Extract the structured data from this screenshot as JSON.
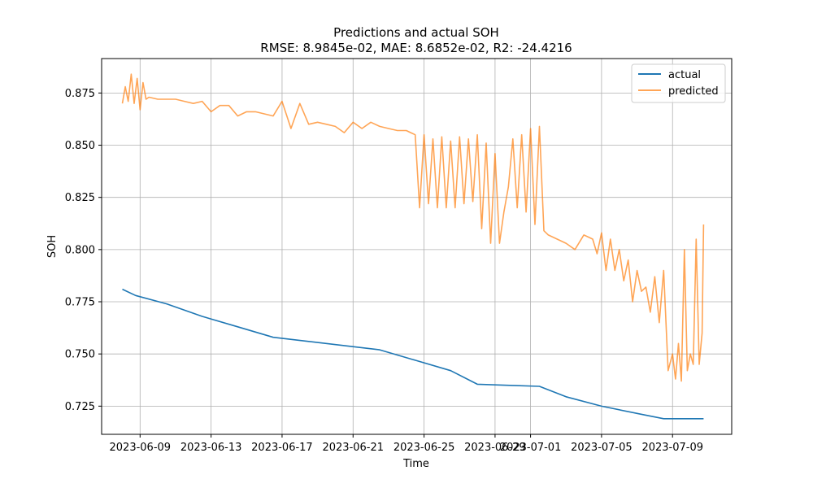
{
  "chart_data": {
    "type": "line",
    "title": "Predictions and actual SOH",
    "subtitle": "RMSE: 8.9845e-02, MAE: 8.6852e-02, R2: -24.4216",
    "xlabel": "Time",
    "ylabel": "SOH",
    "xlim": [
      "2023-06-06T20:00",
      "2023-07-12T08:00"
    ],
    "ylim": [
      0.7115,
      0.8915
    ],
    "grid": true,
    "legend_position": "top-right",
    "x_ticks": [
      "2023-06-09",
      "2023-06-13",
      "2023-06-17",
      "2023-06-21",
      "2023-06-25",
      "2023-06-29",
      "2023-07-01",
      "2023-07-05",
      "2023-07-09"
    ],
    "y_ticks": [
      "0.725",
      "0.750",
      "0.775",
      "0.800",
      "0.825",
      "0.850",
      "0.875"
    ],
    "series": [
      {
        "name": "actual",
        "color": "#1f77b4",
        "x": [
          "2023-06-08",
          "2023-06-08T18:00",
          "2023-06-10T12:00",
          "2023-06-12T12:00",
          "2023-06-14T12:00",
          "2023-06-16T12:00",
          "2023-06-18T12:00",
          "2023-06-20T12:00",
          "2023-06-22T12:00",
          "2023-06-24T12:00",
          "2023-06-26T12:00",
          "2023-06-28",
          "2023-06-30",
          "2023-07-01T12:00",
          "2023-07-03",
          "2023-07-05",
          "2023-07-07",
          "2023-07-08T12:00",
          "2023-07-09T12:00",
          "2023-07-10",
          "2023-07-10T18:00"
        ],
        "values": [
          0.781,
          0.778,
          0.774,
          0.768,
          0.763,
          0.758,
          0.756,
          0.754,
          0.752,
          0.747,
          0.742,
          0.7355,
          0.7349,
          0.7345,
          0.7295,
          0.725,
          0.7215,
          0.719,
          0.719,
          0.719,
          0.719
        ]
      },
      {
        "name": "predicted",
        "color": "#ff7f0e",
        "alpha": 0.7,
        "x": [
          "2023-06-08",
          "2023-06-08T04:00",
          "2023-06-08T08:00",
          "2023-06-08T12:00",
          "2023-06-08T16:00",
          "2023-06-08T20:00",
          "2023-06-09",
          "2023-06-09T04:00",
          "2023-06-09T08:00",
          "2023-06-09T12:00",
          "2023-06-10",
          "2023-06-11",
          "2023-06-11T12:00",
          "2023-06-12",
          "2023-06-12T12:00",
          "2023-06-13",
          "2023-06-13T12:00",
          "2023-06-14",
          "2023-06-14T12:00",
          "2023-06-15",
          "2023-06-15T12:00",
          "2023-06-16",
          "2023-06-16T12:00",
          "2023-06-17",
          "2023-06-17T12:00",
          "2023-06-18",
          "2023-06-18T12:00",
          "2023-06-19",
          "2023-06-19T12:00",
          "2023-06-20",
          "2023-06-20T12:00",
          "2023-06-21",
          "2023-06-21T12:00",
          "2023-06-22",
          "2023-06-22T12:00",
          "2023-06-23",
          "2023-06-23T12:00",
          "2023-06-24",
          "2023-06-24T06:00",
          "2023-06-24T12:00",
          "2023-06-24T18:00",
          "2023-06-25",
          "2023-06-25T06:00",
          "2023-06-25T12:00",
          "2023-06-25T18:00",
          "2023-06-26",
          "2023-06-26T06:00",
          "2023-06-26T12:00",
          "2023-06-26T18:00",
          "2023-06-27",
          "2023-06-27T06:00",
          "2023-06-27T12:00",
          "2023-06-27T18:00",
          "2023-06-28",
          "2023-06-28T06:00",
          "2023-06-28T12:00",
          "2023-06-28T18:00",
          "2023-06-29",
          "2023-06-29T06:00",
          "2023-06-29T12:00",
          "2023-06-29T18:00",
          "2023-06-30",
          "2023-06-30T06:00",
          "2023-06-30T12:00",
          "2023-06-30T18:00",
          "2023-07-01",
          "2023-07-01T06:00",
          "2023-07-01T12:00",
          "2023-07-01T18:00",
          "2023-07-02",
          "2023-07-02T12:00",
          "2023-07-03",
          "2023-07-03T12:00",
          "2023-07-04",
          "2023-07-04T06:00",
          "2023-07-04T12:00",
          "2023-07-04T18:00",
          "2023-07-05",
          "2023-07-05T06:00",
          "2023-07-05T12:00",
          "2023-07-05T18:00",
          "2023-07-06",
          "2023-07-06T06:00",
          "2023-07-06T12:00",
          "2023-07-06T18:00",
          "2023-07-07",
          "2023-07-07T06:00",
          "2023-07-07T12:00",
          "2023-07-07T18:00",
          "2023-07-08",
          "2023-07-08T06:00",
          "2023-07-08T12:00",
          "2023-07-08T18:00",
          "2023-07-09",
          "2023-07-09T04:00",
          "2023-07-09T08:00",
          "2023-07-09T12:00",
          "2023-07-09T16:00",
          "2023-07-09T20:00",
          "2023-07-10",
          "2023-07-10T04:00",
          "2023-07-10T08:00",
          "2023-07-10T12:00",
          "2023-07-10T16:00",
          "2023-07-10T18:00"
        ],
        "values": [
          0.87,
          0.878,
          0.871,
          0.884,
          0.87,
          0.882,
          0.867,
          0.88,
          0.872,
          0.873,
          0.872,
          0.872,
          0.871,
          0.87,
          0.871,
          0.866,
          0.869,
          0.869,
          0.864,
          0.866,
          0.866,
          0.865,
          0.864,
          0.871,
          0.858,
          0.87,
          0.86,
          0.861,
          0.86,
          0.859,
          0.856,
          0.861,
          0.858,
          0.861,
          0.859,
          0.858,
          0.857,
          0.857,
          0.856,
          0.855,
          0.82,
          0.855,
          0.822,
          0.853,
          0.82,
          0.854,
          0.82,
          0.852,
          0.82,
          0.854,
          0.822,
          0.853,
          0.823,
          0.855,
          0.81,
          0.851,
          0.803,
          0.846,
          0.803,
          0.818,
          0.83,
          0.853,
          0.82,
          0.855,
          0.818,
          0.858,
          0.812,
          0.859,
          0.809,
          0.807,
          0.805,
          0.803,
          0.8,
          0.807,
          0.806,
          0.805,
          0.798,
          0.808,
          0.79,
          0.805,
          0.79,
          0.8,
          0.785,
          0.795,
          0.775,
          0.79,
          0.78,
          0.782,
          0.77,
          0.787,
          0.765,
          0.79,
          0.742,
          0.75,
          0.738,
          0.755,
          0.737,
          0.8,
          0.742,
          0.75,
          0.745,
          0.805,
          0.745,
          0.76,
          0.812
        ]
      }
    ]
  }
}
